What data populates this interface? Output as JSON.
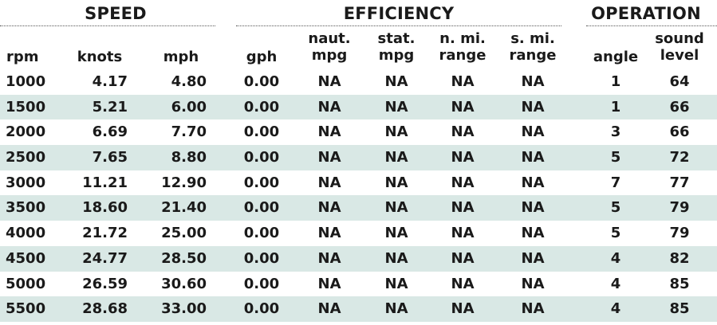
{
  "groups": {
    "speed": "SPEED",
    "efficiency": "EFFICIENCY",
    "operation": "OPERATION"
  },
  "columns": {
    "rpm": "rpm",
    "knots": "knots",
    "mph": "mph",
    "gph": "gph",
    "naut_mpg_1": "naut.",
    "naut_mpg_2": "mpg",
    "stat_mpg_1": "stat.",
    "stat_mpg_2": "mpg",
    "n_range_1": "n. mi.",
    "n_range_2": "range",
    "s_range_1": "s. mi.",
    "s_range_2": "range",
    "angle": "angle",
    "sound_1": "sound",
    "sound_2": "level"
  },
  "rows": [
    {
      "rpm": "1000",
      "knots": "4.17",
      "mph": "4.80",
      "gph": "0.00",
      "naut_mpg": "NA",
      "stat_mpg": "NA",
      "n_range": "NA",
      "s_range": "NA",
      "angle": "1",
      "sound": "64"
    },
    {
      "rpm": "1500",
      "knots": "5.21",
      "mph": "6.00",
      "gph": "0.00",
      "naut_mpg": "NA",
      "stat_mpg": "NA",
      "n_range": "NA",
      "s_range": "NA",
      "angle": "1",
      "sound": "66"
    },
    {
      "rpm": "2000",
      "knots": "6.69",
      "mph": "7.70",
      "gph": "0.00",
      "naut_mpg": "NA",
      "stat_mpg": "NA",
      "n_range": "NA",
      "s_range": "NA",
      "angle": "3",
      "sound": "66"
    },
    {
      "rpm": "2500",
      "knots": "7.65",
      "mph": "8.80",
      "gph": "0.00",
      "naut_mpg": "NA",
      "stat_mpg": "NA",
      "n_range": "NA",
      "s_range": "NA",
      "angle": "5",
      "sound": "72"
    },
    {
      "rpm": "3000",
      "knots": "11.21",
      "mph": "12.90",
      "gph": "0.00",
      "naut_mpg": "NA",
      "stat_mpg": "NA",
      "n_range": "NA",
      "s_range": "NA",
      "angle": "7",
      "sound": "77"
    },
    {
      "rpm": "3500",
      "knots": "18.60",
      "mph": "21.40",
      "gph": "0.00",
      "naut_mpg": "NA",
      "stat_mpg": "NA",
      "n_range": "NA",
      "s_range": "NA",
      "angle": "5",
      "sound": "79"
    },
    {
      "rpm": "4000",
      "knots": "21.72",
      "mph": "25.00",
      "gph": "0.00",
      "naut_mpg": "NA",
      "stat_mpg": "NA",
      "n_range": "NA",
      "s_range": "NA",
      "angle": "5",
      "sound": "79"
    },
    {
      "rpm": "4500",
      "knots": "24.77",
      "mph": "28.50",
      "gph": "0.00",
      "naut_mpg": "NA",
      "stat_mpg": "NA",
      "n_range": "NA",
      "s_range": "NA",
      "angle": "4",
      "sound": "82"
    },
    {
      "rpm": "5000",
      "knots": "26.59",
      "mph": "30.60",
      "gph": "0.00",
      "naut_mpg": "NA",
      "stat_mpg": "NA",
      "n_range": "NA",
      "s_range": "NA",
      "angle": "4",
      "sound": "85"
    },
    {
      "rpm": "5500",
      "knots": "28.68",
      "mph": "33.00",
      "gph": "0.00",
      "naut_mpg": "NA",
      "stat_mpg": "NA",
      "n_range": "NA",
      "s_range": "NA",
      "angle": "4",
      "sound": "85"
    }
  ],
  "colors": {
    "shaded_row": "#d9e8e5",
    "text": "#1a1a1a"
  }
}
